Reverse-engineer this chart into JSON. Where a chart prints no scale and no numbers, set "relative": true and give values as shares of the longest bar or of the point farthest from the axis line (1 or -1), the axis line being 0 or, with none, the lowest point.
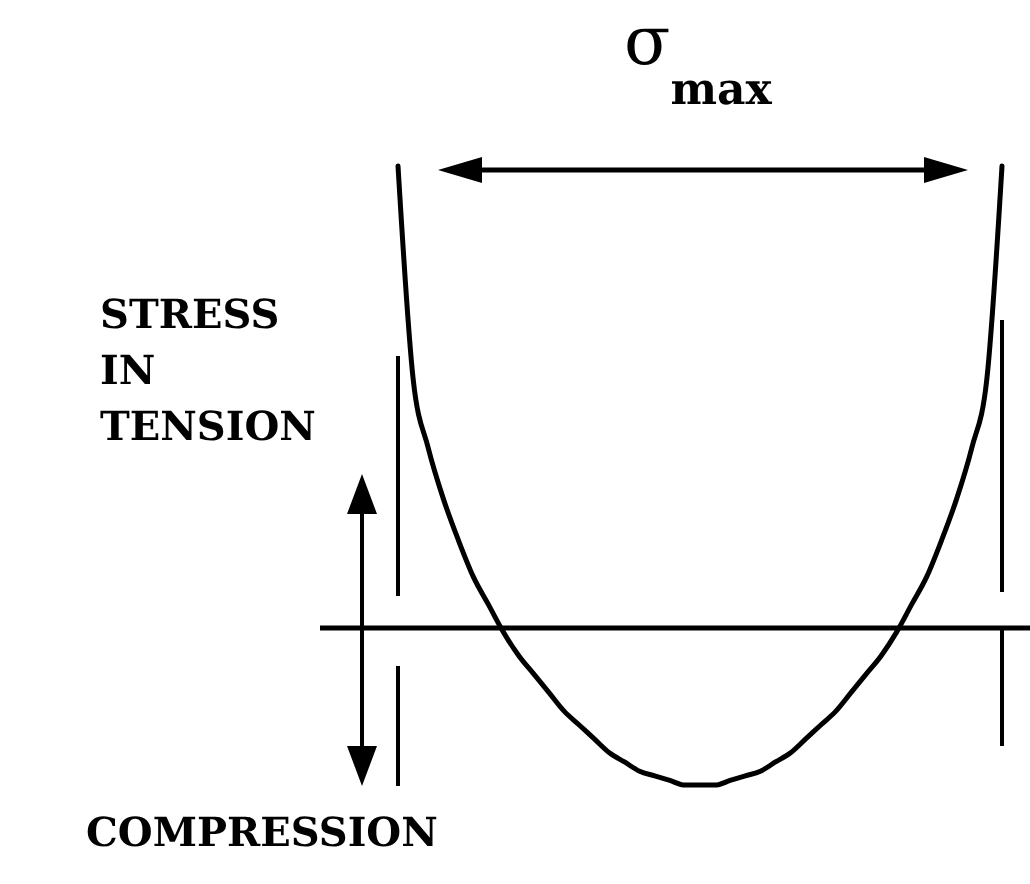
{
  "chart_data": {
    "type": "line",
    "relative": true,
    "categories": [
      null,
      null,
      null,
      null,
      null,
      null,
      null,
      null,
      null,
      null,
      null,
      null,
      null,
      null,
      null,
      null,
      null,
      null,
      null,
      null,
      null,
      null,
      null,
      null,
      null,
      null,
      null,
      null,
      null,
      null,
      null,
      null,
      null,
      null,
      null,
      null,
      null,
      null,
      null,
      null,
      null
    ],
    "series": [
      {
        "color": "#000000",
        "values": [
          1.0,
          0.54,
          0.39,
          0.28,
          0.19,
          0.11,
          0.05,
          -0.01,
          -0.06,
          -0.1,
          -0.14,
          -0.18,
          -0.21,
          -0.24,
          -0.27,
          -0.29,
          -0.31,
          -0.32,
          -0.33,
          -0.34,
          -0.34,
          -0.34,
          -0.33,
          -0.32,
          -0.31,
          -0.29,
          -0.27,
          -0.24,
          -0.21,
          -0.18,
          -0.14,
          -0.1,
          -0.06,
          -0.01,
          0.05,
          0.11,
          0.19,
          0.28,
          0.39,
          0.54,
          1.0
        ]
      }
    ],
    "annotations": [
      "σ$_{max}$",
      "STRESS IN TENSION",
      "COMPRESSION"
    ]
  }
}
